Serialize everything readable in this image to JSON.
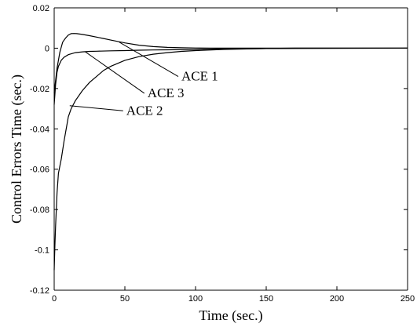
{
  "chart_data": {
    "type": "line",
    "xlabel": "Time (sec.)",
    "ylabel": "Control Errors  Time (sec.)",
    "xlim": [
      0,
      250
    ],
    "ylim": [
      -0.12,
      0.02
    ],
    "xticks": [
      "0",
      "50",
      "100",
      "150",
      "200",
      "250"
    ],
    "yticks": [
      "0.02",
      "0",
      "-0.02",
      "-0.04",
      "-0.06",
      "-0.08",
      "-0.1",
      "-0.12"
    ],
    "grid": false,
    "series": [
      {
        "name": "ACE 1",
        "x": [
          0,
          2,
          4,
          6,
          8,
          10,
          12,
          14,
          16,
          20,
          25,
          30,
          35,
          40,
          50,
          60,
          70,
          80,
          90,
          100,
          110,
          120,
          150,
          250
        ],
        "y": [
          -0.022,
          -0.01,
          -0.002,
          0.003,
          0.005,
          0.0065,
          0.0072,
          0.0073,
          0.0072,
          0.0068,
          0.0062,
          0.0055,
          0.0048,
          0.004,
          0.0026,
          0.0015,
          0.0008,
          0.0004,
          0.0002,
          0.0001,
          5e-05,
          0.0,
          0.0,
          0.0
        ]
      },
      {
        "name": "ACE 3",
        "x": [
          0,
          1,
          2,
          3,
          5,
          7,
          10,
          15,
          20,
          25,
          30,
          40,
          50,
          60,
          70,
          80,
          100,
          120,
          150,
          170,
          250
        ],
        "y": [
          -0.028,
          -0.018,
          -0.012,
          -0.009,
          -0.006,
          -0.0045,
          -0.0032,
          -0.0022,
          -0.0018,
          -0.0016,
          -0.0015,
          -0.0013,
          -0.0012,
          -0.001,
          -0.0009,
          -0.0008,
          -0.0006,
          -0.0004,
          -0.0002,
          0.0,
          0.0
        ]
      },
      {
        "name": "ACE 2",
        "x": [
          0,
          0.5,
          1,
          2,
          3,
          5,
          7,
          10,
          12,
          15,
          20,
          25,
          30,
          35,
          40,
          50,
          60,
          70,
          80,
          90,
          100,
          120,
          150,
          250
        ],
        "y": [
          -0.11,
          -0.098,
          -0.088,
          -0.072,
          -0.062,
          -0.055,
          -0.046,
          -0.034,
          -0.03,
          -0.026,
          -0.021,
          -0.017,
          -0.014,
          -0.011,
          -0.009,
          -0.006,
          -0.0042,
          -0.003,
          -0.0022,
          -0.0016,
          -0.0012,
          -0.0006,
          -0.0002,
          0.0
        ]
      }
    ],
    "annotations": [
      {
        "text": "ACE 1",
        "series": "ACE 1",
        "text_x": 90,
        "text_y": -0.016,
        "point_x": 46,
        "point_y": 0.003
      },
      {
        "text": "ACE 3",
        "series": "ACE 3",
        "text_x": 66,
        "text_y": -0.0243,
        "point_x": 22,
        "point_y": -0.0018
      },
      {
        "text": "ACE 2",
        "series": "ACE 2",
        "text_x": 51,
        "text_y": -0.033,
        "point_x": 11,
        "point_y": -0.0285
      }
    ]
  }
}
